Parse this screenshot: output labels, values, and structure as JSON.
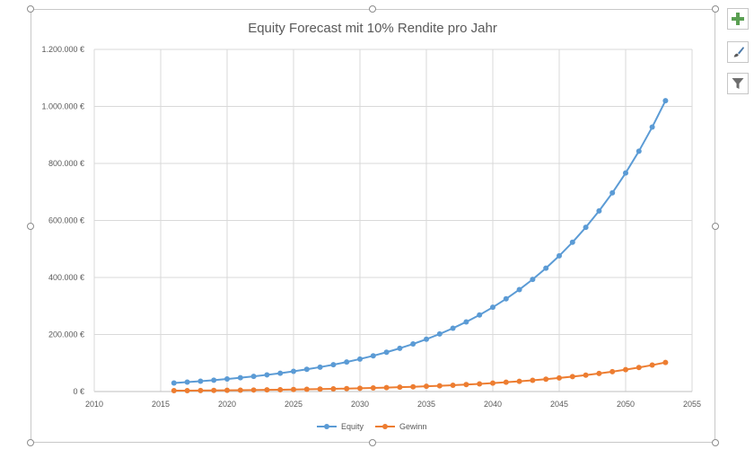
{
  "chart_data": {
    "type": "line",
    "title": "Equity Forecast mit 10% Rendite pro Jahr",
    "xlabel": "",
    "ylabel": "",
    "xlim": [
      2010,
      2055
    ],
    "ylim": [
      0,
      1200000
    ],
    "x_ticks": [
      2010,
      2015,
      2020,
      2025,
      2030,
      2035,
      2040,
      2045,
      2050,
      2055
    ],
    "y_ticks": [
      0,
      200000,
      400000,
      600000,
      800000,
      1000000,
      1200000
    ],
    "x_tick_labels": [
      "2010",
      "2015",
      "2020",
      "2025",
      "2030",
      "2035",
      "2040",
      "2045",
      "2050",
      "2055"
    ],
    "y_tick_labels": [
      "0 €",
      "200.000 €",
      "400.000 €",
      "600.000 €",
      "800.000 €",
      "1.000.000 €",
      "1.200.000 €"
    ],
    "grid": true,
    "legend_position": "bottom",
    "x": [
      2016,
      2017,
      2018,
      2019,
      2020,
      2021,
      2022,
      2023,
      2024,
      2025,
      2026,
      2027,
      2028,
      2029,
      2030,
      2031,
      2032,
      2033,
      2034,
      2035,
      2036,
      2037,
      2038,
      2039,
      2040,
      2041,
      2042,
      2043,
      2044,
      2045,
      2046,
      2047,
      2048,
      2049,
      2050,
      2051,
      2052,
      2053
    ],
    "series": [
      {
        "name": "Equity",
        "color": "#5b9bd5",
        "values": [
          30000,
          33000,
          36300,
          39930,
          43923,
          48315,
          53147,
          58462,
          64308,
          70738,
          77812,
          85594,
          94153,
          103568,
          113925,
          125317,
          137849,
          151634,
          166797,
          183477,
          201825,
          222007,
          244208,
          268629,
          295492,
          325041,
          357545,
          393300,
          432630,
          475893,
          523482,
          575830,
          633413,
          696754,
          766430,
          843073,
          927380,
          1020118
        ]
      },
      {
        "name": "Gewinn",
        "color": "#ed7d31",
        "values": [
          3000,
          3300,
          3630,
          3993,
          4392,
          4832,
          5315,
          5846,
          6431,
          7074,
          7781,
          8559,
          9415,
          10357,
          11393,
          12532,
          13785,
          15163,
          16680,
          18348,
          20183,
          22201,
          24421,
          26863,
          29549,
          32504,
          35755,
          39330,
          43263,
          47589,
          52348,
          57583,
          63341,
          69675,
          76643,
          84307,
          92738,
          102012
        ]
      }
    ]
  },
  "toolbar": {
    "add_icon": "plus-icon",
    "style_icon": "brush-icon",
    "filter_icon": "funnel-icon"
  }
}
